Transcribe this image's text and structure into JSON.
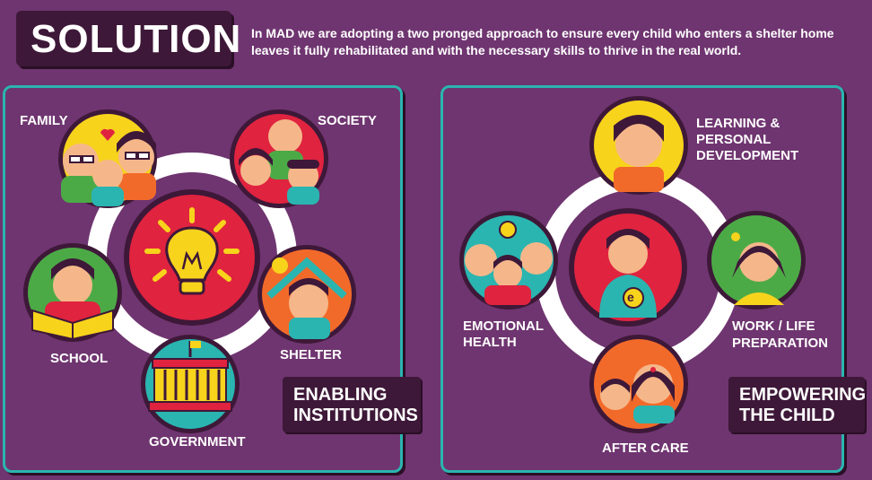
{
  "title": "SOLUTION",
  "intro": "In MAD we are adopting a two pronged approach to ensure every child who enters a shelter home leaves it fully rehabilitated and with the necessary skills to thrive in the real world.",
  "left_panel": {
    "items": {
      "family": "FAMILY",
      "society": "SOCIETY",
      "school": "SCHOOL",
      "shelter": "SHELTER",
      "government": "GOVERNMENT"
    },
    "tag": [
      "ENABLING",
      "INSTITUTIONS"
    ]
  },
  "right_panel": {
    "items": {
      "learning": [
        "LEARNING &",
        "PERSONAL",
        "DEVELOPMENT"
      ],
      "emotional": [
        "EMOTIONAL",
        "HEALTH"
      ],
      "work": [
        "WORK / LIFE",
        "PREPARATION"
      ],
      "aftercare": "AFTER CARE"
    },
    "tag": [
      "EMPOWERING",
      "THE CHILD"
    ],
    "center_badge": "e"
  },
  "colors": {
    "background": "#6f3570",
    "dark_box": "#3e1838",
    "panel_border": "#2ab5b0",
    "red": "#e0233f",
    "yellow": "#f7d31c",
    "teal": "#2ab5b0",
    "green": "#4caa46",
    "orange": "#f26a2a"
  }
}
